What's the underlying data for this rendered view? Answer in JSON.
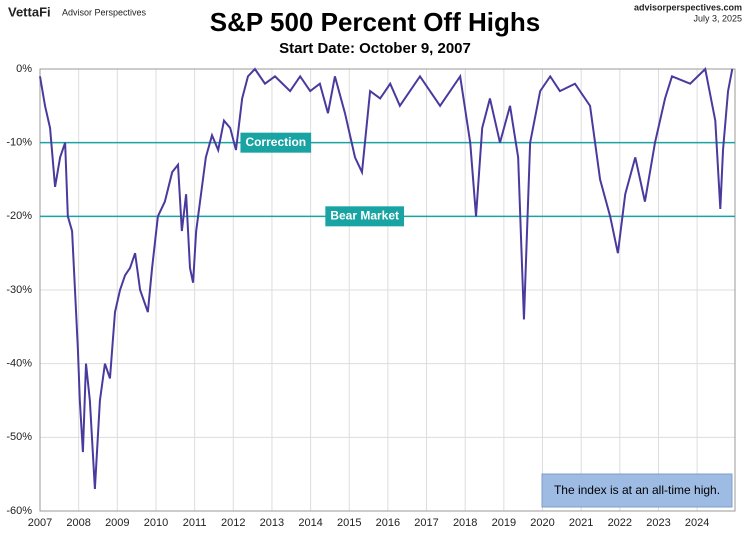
{
  "header": {
    "brand": "VettaFi",
    "brand_sub": "Advisor Perspectives",
    "site": "advisorperspectives.com",
    "date": "July 3, 2025"
  },
  "chart_data": {
    "type": "line",
    "title": "S&P 500 Percent Off Highs",
    "subtitle": "Start Date: October 9, 2007",
    "x": [
      2007.0,
      2007.13,
      2007.26,
      2007.39,
      2007.52,
      2007.65,
      2007.72,
      2007.83,
      2007.98,
      2008.03,
      2008.11,
      2008.19,
      2008.29,
      2008.42,
      2008.55,
      2008.68,
      2008.81,
      2008.94,
      2009.07,
      2009.2,
      2009.33,
      2009.46,
      2009.59,
      2009.79,
      2009.9,
      2010.05,
      2010.23,
      2010.42,
      2010.57,
      2010.67,
      2010.78,
      2010.88,
      2010.96,
      2011.04,
      2011.14,
      2011.29,
      2011.45,
      2011.61,
      2011.76,
      2011.92,
      2012.07,
      2012.23,
      2012.38,
      2012.56,
      2012.82,
      2013.08,
      2013.47,
      2013.73,
      2013.99,
      2014.24,
      2014.45,
      2014.63,
      2014.89,
      2015.15,
      2015.33,
      2015.54,
      2015.8,
      2016.06,
      2016.31,
      2016.83,
      2017.35,
      2017.87,
      2018.13,
      2018.28,
      2018.44,
      2018.64,
      2018.9,
      2019.16,
      2019.37,
      2019.52,
      2019.68,
      2019.94,
      2020.2,
      2020.45,
      2020.84,
      2021.23,
      2021.49,
      2021.75,
      2021.95,
      2022.14,
      2022.4,
      2022.65,
      2022.91,
      2023.17,
      2023.35,
      2023.82,
      2024.21,
      2024.47,
      2024.6,
      2024.67,
      2024.8,
      2024.91
    ],
    "series": [
      {
        "color": "#4b3a9e",
        "values": [
          -1,
          -5,
          -8,
          -16,
          -12,
          -10,
          -20,
          -22,
          -38,
          -45,
          -52,
          -40,
          -45,
          -57,
          -45,
          -40,
          -42,
          -33,
          -30,
          -28,
          -27,
          -25,
          -30,
          -33,
          -27,
          -20,
          -18,
          -14,
          -13,
          -22,
          -17,
          -27,
          -29,
          -22,
          -18,
          -12,
          -9,
          -11,
          -7,
          -8,
          -11,
          -4,
          -1,
          0,
          -2,
          -1,
          -3,
          -1,
          -3,
          -2,
          -6,
          -1,
          -6,
          -12,
          -14,
          -3,
          -4,
          -2,
          -5,
          -1,
          -5,
          -1,
          -10,
          -20,
          -8,
          -4,
          -10,
          -5,
          -12,
          -34,
          -10,
          -3,
          -1,
          -3,
          -2,
          -5,
          -15,
          -20,
          -25,
          -17,
          -12,
          -18,
          -10,
          -4,
          -1,
          -2,
          0,
          -7,
          -19,
          -11,
          -3,
          0
        ]
      }
    ],
    "xlim": [
      2007,
      2024.98
    ],
    "xticks": [
      2007,
      2008,
      2009,
      2010,
      2011,
      2012,
      2013,
      2014,
      2015,
      2016,
      2017,
      2018,
      2019,
      2020,
      2021,
      2022,
      2023,
      2024
    ],
    "ylim": [
      -60,
      0
    ],
    "yticks": [
      {
        "value": -60,
        "label": "-60%"
      },
      {
        "value": -50,
        "label": "-50%"
      },
      {
        "value": -40,
        "label": "-40%"
      },
      {
        "value": -30,
        "label": "-30%"
      },
      {
        "value": -20,
        "label": "-20%"
      },
      {
        "value": -10,
        "label": "-10%"
      },
      {
        "value": 0,
        "label": "0%"
      }
    ],
    "grid": true,
    "reference_lines": [
      {
        "value": -10,
        "label": "Correction",
        "label_x": 2013.1
      },
      {
        "value": -20,
        "label": "Bear Market",
        "label_x": 2015.4
      }
    ],
    "reference_color": "#1aa3a3",
    "annotation": "The index is at an all-time high."
  }
}
